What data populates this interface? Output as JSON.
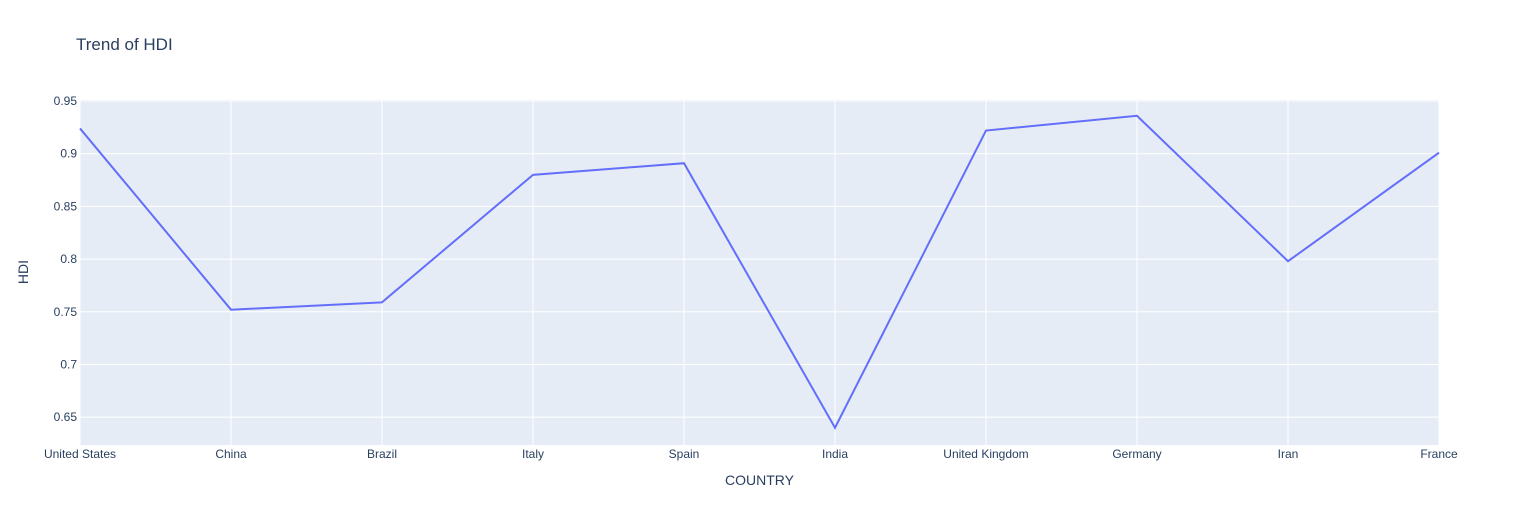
{
  "chart_data": {
    "type": "line",
    "title": "Trend of HDI",
    "xlabel": "COUNTRY",
    "ylabel": "HDI",
    "categories": [
      "United States",
      "China",
      "Brazil",
      "Italy",
      "Spain",
      "India",
      "United Kingdom",
      "Germany",
      "Iran",
      "France"
    ],
    "series": [
      {
        "values": [
          0.924,
          0.752,
          0.759,
          0.88,
          0.891,
          0.64,
          0.922,
          0.936,
          0.798,
          0.901
        ]
      }
    ],
    "y_ticks": [
      "0.65",
      "0.7",
      "0.75",
      "0.8",
      "0.85",
      "0.9",
      "0.95"
    ],
    "ylim": [
      0.6236,
      0.951
    ],
    "grid": true,
    "colors": {
      "background": "#e5ecf6",
      "grid": "#ffffff",
      "line": "#636efa",
      "text": "#2a3f5f"
    }
  }
}
